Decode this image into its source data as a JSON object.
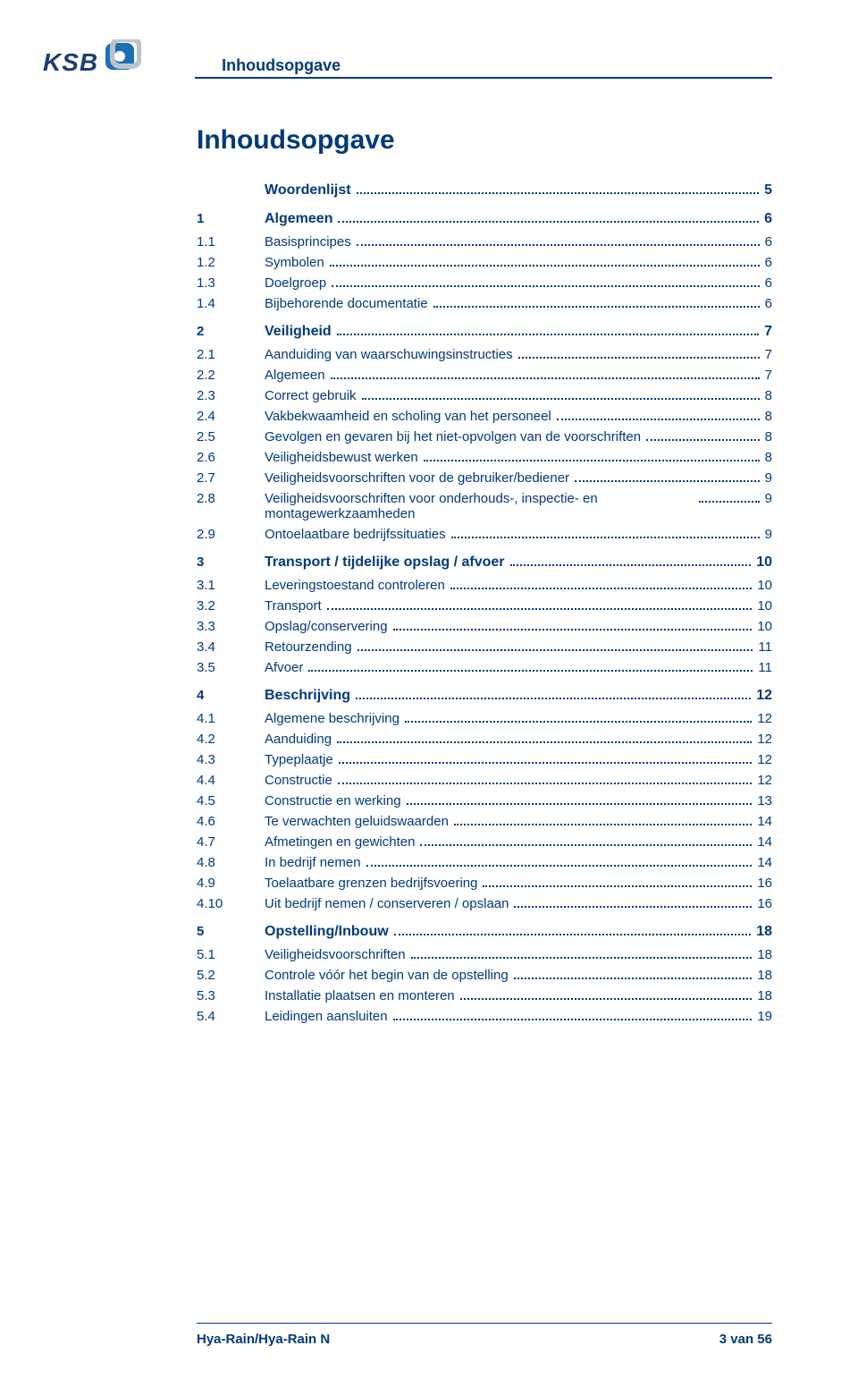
{
  "colors": {
    "primary": "#003a7b",
    "logo_text": "#1d3e73",
    "logo_mark_blue": "#1d6fb8",
    "logo_mark_grey": "#b9c4cc",
    "background": "#ffffff"
  },
  "header": {
    "logo_text": "KSB",
    "section_title": "Inhoudsopgave"
  },
  "page_title": "Inhoudsopgave",
  "toc": [
    {
      "num": "",
      "title": "Woordenlijst",
      "page": "5",
      "level": "section"
    },
    {
      "num": "1",
      "title": "Algemeen",
      "page": "6",
      "level": "section"
    },
    {
      "num": "1.1",
      "title": "Basisprincipes",
      "page": "6",
      "level": "item"
    },
    {
      "num": "1.2",
      "title": "Symbolen",
      "page": "6",
      "level": "item"
    },
    {
      "num": "1.3",
      "title": "Doelgroep",
      "page": "6",
      "level": "item"
    },
    {
      "num": "1.4",
      "title": "Bijbehorende documentatie",
      "page": "6",
      "level": "item"
    },
    {
      "num": "2",
      "title": "Veiligheid",
      "page": "7",
      "level": "section"
    },
    {
      "num": "2.1",
      "title": "Aanduiding van waarschuwingsinstructies",
      "page": "7",
      "level": "item"
    },
    {
      "num": "2.2",
      "title": "Algemeen",
      "page": "7",
      "level": "item"
    },
    {
      "num": "2.3",
      "title": "Correct gebruik",
      "page": "8",
      "level": "item"
    },
    {
      "num": "2.4",
      "title": "Vakbekwaamheid en scholing van het personeel",
      "page": "8",
      "level": "item"
    },
    {
      "num": "2.5",
      "title": "Gevolgen en gevaren bij het niet-opvolgen van de voorschriften",
      "page": "8",
      "level": "item"
    },
    {
      "num": "2.6",
      "title": "Veiligheidsbewust werken",
      "page": "8",
      "level": "item"
    },
    {
      "num": "2.7",
      "title": "Veiligheidsvoorschriften voor de gebruiker/bediener",
      "page": "9",
      "level": "item"
    },
    {
      "num": "2.8",
      "title": "Veiligheidsvoorschriften voor onderhouds-, inspectie- en montagewerkzaamheden",
      "page": "9",
      "level": "item",
      "wrap": true
    },
    {
      "num": "2.9",
      "title": "Ontoelaatbare bedrijfssituaties",
      "page": "9",
      "level": "item"
    },
    {
      "num": "3",
      "title": "Transport / tijdelijke opslag / afvoer",
      "page": "10",
      "level": "section"
    },
    {
      "num": "3.1",
      "title": "Leveringstoestand controleren",
      "page": "10",
      "level": "item"
    },
    {
      "num": "3.2",
      "title": "Transport",
      "page": "10",
      "level": "item"
    },
    {
      "num": "3.3",
      "title": "Opslag/conservering",
      "page": "10",
      "level": "item"
    },
    {
      "num": "3.4",
      "title": "Retourzending",
      "page": "11",
      "level": "item"
    },
    {
      "num": "3.5",
      "title": "Afvoer",
      "page": "11",
      "level": "item"
    },
    {
      "num": "4",
      "title": "Beschrijving",
      "page": "12",
      "level": "section"
    },
    {
      "num": "4.1",
      "title": "Algemene beschrijving",
      "page": "12",
      "level": "item"
    },
    {
      "num": "4.2",
      "title": "Aanduiding",
      "page": "12",
      "level": "item"
    },
    {
      "num": "4.3",
      "title": "Typeplaatje",
      "page": "12",
      "level": "item"
    },
    {
      "num": "4.4",
      "title": "Constructie",
      "page": "12",
      "level": "item"
    },
    {
      "num": "4.5",
      "title": "Constructie en werking",
      "page": "13",
      "level": "item"
    },
    {
      "num": "4.6",
      "title": "Te verwachten geluidswaarden",
      "page": "14",
      "level": "item"
    },
    {
      "num": "4.7",
      "title": "Afmetingen en gewichten",
      "page": "14",
      "level": "item"
    },
    {
      "num": "4.8",
      "title": "In bedrijf nemen",
      "page": "14",
      "level": "item"
    },
    {
      "num": "4.9",
      "title": "Toelaatbare grenzen bedrijfsvoering",
      "page": "16",
      "level": "item"
    },
    {
      "num": "4.10",
      "title": "Uit bedrijf nemen / conserveren / opslaan",
      "page": "16",
      "level": "item"
    },
    {
      "num": "5",
      "title": "Opstelling/Inbouw",
      "page": "18",
      "level": "section"
    },
    {
      "num": "5.1",
      "title": "Veiligheidsvoorschriften",
      "page": "18",
      "level": "item"
    },
    {
      "num": "5.2",
      "title": "Controle vóór het begin van de opstelling",
      "page": "18",
      "level": "item"
    },
    {
      "num": "5.3",
      "title": "Installatie plaatsen en monteren",
      "page": "18",
      "level": "item"
    },
    {
      "num": "5.4",
      "title": "Leidingen aansluiten",
      "page": "19",
      "level": "item"
    }
  ],
  "footer": {
    "left": "Hya-Rain/Hya-Rain N",
    "right": "3 van 56"
  }
}
